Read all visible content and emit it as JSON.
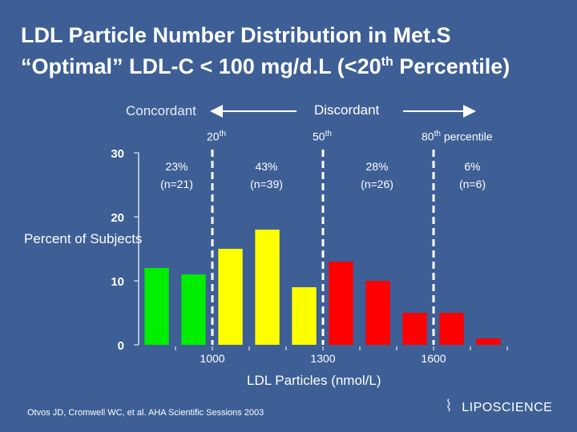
{
  "title_line1": "LDL Particle Number Distribution in Met.S",
  "title_line2_pre": "“Optimal” LDL-C < 100 mg/d.L (<20",
  "title_line2_sup": "th",
  "title_line2_post": " Percentile)",
  "concordant": "Concordant",
  "discordant": "Discordant",
  "pct_labels": [
    {
      "num": "20",
      "sup": "th"
    },
    {
      "num": "50",
      "sup": "th"
    },
    {
      "num": "80",
      "sup": "th",
      "suffix": "percentile"
    }
  ],
  "groups": [
    {
      "pct": "23%",
      "n": "(n=21)"
    },
    {
      "pct": "43%",
      "n": "(n=39)"
    },
    {
      "pct": "28%",
      "n": "(n=26)"
    },
    {
      "pct": "6%",
      "n": "(n=6)"
    }
  ],
  "reference": "Otvos JD, Cromwell WC, et al. AHA Scientific Sessions 2003",
  "logo": "LIPOSCIENCE",
  "chart_data": {
    "type": "bar",
    "xlabel": "LDL Particles (nmol/L)",
    "ylabel": "Percent of Subjects",
    "ylim": [
      0,
      30
    ],
    "yticks": [
      "0",
      "10",
      "20",
      "30"
    ],
    "xlim": [
      800,
      1800
    ],
    "xtick_labels": [
      "1000",
      "1300",
      "1600"
    ],
    "bin_centers": [
      850,
      950,
      1050,
      1150,
      1250,
      1350,
      1450,
      1550,
      1650,
      1750
    ],
    "values": [
      12,
      11,
      15,
      18,
      9,
      13,
      10,
      5,
      5,
      1
    ],
    "colors": [
      "#00ee00",
      "#00ee00",
      "#ffff00",
      "#ffff00",
      "#ffff00",
      "#ff0000",
      "#ff0000",
      "#ff0000",
      "#ff0000",
      "#ff0000"
    ],
    "dividers": [
      1000,
      1300,
      1600
    ],
    "grid": false
  }
}
